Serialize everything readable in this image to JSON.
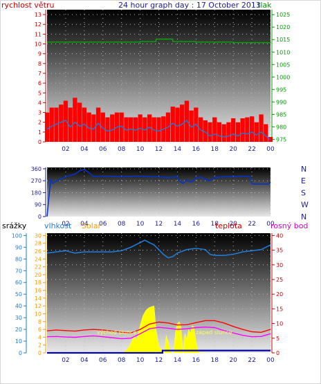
{
  "header": {
    "title": "24 hour graph day : 17 October 2013",
    "wind_label": "rychlost větru",
    "pressure_label": "tlak"
  },
  "colors": {
    "wind": "#ff0000",
    "pressure": "#00aa00",
    "direction": "#0033cc",
    "humidity": "#1e7bd6",
    "solar": "#ffff00",
    "temperature": "#ff0000",
    "dewpoint": "#ff00ff",
    "rain": "#0000aa"
  },
  "legend3": {
    "rain": "srážky",
    "humidity": "vlhkost",
    "solar": "Solar",
    "temperature": "teplota",
    "dewpoint": "rosný bod"
  },
  "annotations": {
    "sunrise": "východ slunce",
    "sunset": "západ slunce"
  },
  "chart_data": [
    {
      "type": "line",
      "name": "wind-pressure",
      "x_labels": [
        "02",
        "04",
        "06",
        "08",
        "10",
        "12",
        "14",
        "16",
        "18",
        "20",
        "22",
        "00"
      ],
      "x_range": [
        0,
        24
      ],
      "y_left": {
        "label": "rychlost větru",
        "ticks": [
          0,
          1,
          2,
          3,
          4,
          5,
          6,
          7,
          8,
          9,
          10,
          11,
          12,
          13
        ],
        "range": [
          0,
          13.5
        ]
      },
      "y_right": {
        "label": "tlak",
        "ticks": [
          975,
          980,
          985,
          990,
          995,
          1000,
          1005,
          1010,
          1015,
          1020,
          1025
        ],
        "range": [
          974,
          1027
        ]
      },
      "series": [
        {
          "name": "gust",
          "kind": "bars",
          "x": [
            0,
            0.5,
            1,
            1.5,
            2,
            2.5,
            3,
            3.5,
            4,
            4.5,
            5,
            5.5,
            6,
            6.5,
            7,
            7.5,
            8,
            8.5,
            9,
            9.5,
            10,
            10.5,
            11,
            11.5,
            12,
            12.5,
            13,
            13.5,
            14,
            14.5,
            15,
            15.5,
            16,
            16.5,
            17,
            17.5,
            18,
            18.5,
            19,
            19.5,
            20,
            20.5,
            21,
            21.5,
            22,
            22.5,
            23,
            23.5,
            24
          ],
          "y": [
            3,
            3.5,
            3.5,
            3.8,
            4.2,
            3.5,
            4.5,
            4,
            3.5,
            3,
            2.8,
            3.5,
            3,
            2.5,
            2.8,
            3,
            3,
            2.5,
            2.5,
            2.5,
            2.8,
            2.5,
            2.8,
            2.5,
            2.5,
            2.6,
            3,
            3.6,
            3.5,
            3.8,
            4.2,
            3.2,
            3.5,
            2.5,
            2.2,
            2,
            2.5,
            2,
            1.8,
            2,
            2.4,
            2,
            2.4,
            2.5,
            2.6,
            2,
            2.8,
            1.8,
            0.5
          ]
        },
        {
          "name": "wind",
          "kind": "line",
          "x": [
            0,
            0.5,
            1,
            1.5,
            2,
            2.5,
            3,
            3.5,
            4,
            4.5,
            5,
            5.5,
            6,
            6.5,
            7,
            7.5,
            8,
            8.5,
            9,
            9.5,
            10,
            10.5,
            11,
            11.5,
            12,
            12.5,
            13,
            13.5,
            14,
            14.5,
            15,
            15.5,
            16,
            16.5,
            17,
            17.5,
            18,
            18.5,
            19,
            19.5,
            20,
            20.5,
            21,
            21.5,
            22,
            22.5,
            23,
            23.5,
            24
          ],
          "y": [
            1.3,
            1.6,
            1.8,
            2,
            2.2,
            1.5,
            2,
            1.6,
            1.8,
            1.4,
            1.3,
            1.9,
            1.4,
            1.1,
            1.2,
            1.5,
            1.6,
            1.2,
            1.3,
            1.2,
            1.4,
            1.2,
            1.5,
            1.2,
            1.1,
            1.3,
            1.5,
            1.9,
            1.6,
            1.8,
            2.2,
            1.5,
            1.8,
            1.2,
            1,
            0.6,
            0.8,
            0.6,
            0.5,
            0.6,
            0.8,
            0.6,
            0.9,
            0.8,
            1,
            0.7,
            1,
            0.6,
            0.2
          ]
        },
        {
          "name": "pressure",
          "kind": "line",
          "x": [
            0,
            2,
            4,
            6,
            8,
            10,
            11.2,
            11.7,
            12,
            12.3,
            13,
            13.5,
            14,
            16,
            18,
            20,
            22,
            24
          ],
          "y": [
            1014,
            1014,
            1014,
            1014,
            1014,
            1014.2,
            1014.2,
            1015.2,
            1015.2,
            1015.2,
            1015.2,
            1014.2,
            1014.2,
            1014,
            1014,
            1013.8,
            1013.8,
            1013.6
          ]
        }
      ]
    },
    {
      "type": "line",
      "name": "wind-direction",
      "x_labels": [
        "02",
        "04",
        "06",
        "08",
        "10",
        "12",
        "14",
        "16",
        "18",
        "20",
        "22",
        "00"
      ],
      "x_range": [
        0,
        24
      ],
      "y_left": {
        "ticks": [
          0,
          90,
          180,
          270,
          360
        ],
        "range": [
          0,
          370
        ]
      },
      "y_right": {
        "ticks": [
          "N",
          "W",
          "S",
          "E",
          "N"
        ]
      },
      "series": [
        {
          "name": "direction",
          "x": [
            0,
            0.2,
            0.4,
            0.6,
            1,
            2,
            3,
            3.5,
            4,
            4.5,
            5,
            6,
            8,
            10,
            11,
            12,
            13,
            14,
            14.2,
            14.6,
            15,
            15.5,
            16,
            16.5,
            17,
            17.5,
            18,
            19,
            20,
            21,
            21.8,
            22,
            23,
            23.8,
            24
          ],
          "y": [
            0,
            150,
            280,
            250,
            270,
            300,
            320,
            345,
            355,
            330,
            300,
            305,
            300,
            305,
            300,
            300,
            295,
            300,
            270,
            250,
            275,
            260,
            290,
            300,
            280,
            270,
            295,
            300,
            300,
            305,
            300,
            245,
            245,
            245,
            260
          ]
        }
      ]
    },
    {
      "type": "area",
      "name": "humidity-solar-temperature",
      "x_labels": [
        "02",
        "04",
        "06",
        "08",
        "10",
        "12",
        "14",
        "16",
        "18",
        "20",
        "22",
        "00"
      ],
      "x_range": [
        0,
        24
      ],
      "y_left_rain": {
        "label": "srážky",
        "ticks": [
          0,
          10,
          20,
          30,
          40,
          50,
          60,
          70,
          80,
          90,
          100
        ],
        "range": [
          0,
          102
        ]
      },
      "y_left_humidity": {
        "label": "vlhkost",
        "ticks": [
          0,
          2,
          4,
          6,
          8,
          10,
          12,
          14,
          16,
          18,
          20,
          22,
          24,
          26,
          28,
          30
        ],
        "range": [
          0,
          30.6
        ]
      },
      "y_right": {
        "label": "teplota",
        "ticks": [
          0,
          5,
          10,
          15,
          20,
          25,
          30,
          35,
          40
        ],
        "range": [
          0,
          40.8
        ]
      },
      "series": [
        {
          "name": "humidity",
          "x": [
            0,
            1,
            2,
            3,
            4,
            5,
            6,
            7,
            8,
            9,
            10,
            10.5,
            11,
            11.5,
            12,
            12.5,
            13,
            13.5,
            14,
            15,
            16,
            17,
            17.5,
            18,
            19,
            20,
            21,
            22,
            23,
            24
          ],
          "y": [
            85,
            86,
            87,
            85,
            86,
            86,
            86,
            86,
            87,
            90,
            94,
            96,
            94,
            92,
            88,
            84,
            81,
            82,
            85,
            88,
            89,
            88,
            84,
            83,
            83,
            84,
            86,
            87,
            88,
            92
          ]
        },
        {
          "name": "solar",
          "x": [
            6.8,
            7,
            7.4,
            7.6,
            8,
            8.4,
            8.8,
            9,
            9.4,
            9.6,
            10,
            10.3,
            10.6,
            10.9,
            11.2,
            11.5,
            11.7,
            12,
            12.2,
            12.4,
            12.6,
            12.8,
            13,
            13.2,
            13.4,
            13.6,
            13.8,
            14,
            14.2,
            14.4,
            14.6,
            14.8,
            15,
            15.2,
            15.4,
            15.6,
            15.8,
            16,
            16.2,
            16.4,
            16.6,
            16.8,
            17
          ],
          "y": [
            0,
            0,
            0,
            0,
            0,
            0.5,
            1.5,
            2.5,
            4.5,
            3,
            7,
            9.5,
            10.8,
            11.5,
            11.8,
            12,
            6,
            2,
            1,
            0,
            0,
            4.5,
            3,
            1,
            0,
            0,
            5.5,
            7.5,
            8,
            6.5,
            0,
            5,
            3.5,
            6,
            5,
            7,
            6.5,
            3,
            0.5,
            0,
            0,
            0,
            0
          ]
        },
        {
          "name": "temperature",
          "x": [
            0,
            1,
            2,
            3,
            4,
            5,
            6,
            7,
            8,
            9,
            10,
            11,
            12,
            13,
            14,
            15,
            16,
            17,
            18,
            19,
            20,
            21,
            22,
            23,
            24
          ],
          "y": [
            7.5,
            7.8,
            7.6,
            7.4,
            7.8,
            8,
            7.8,
            7.4,
            7,
            6.8,
            8,
            9.8,
            10.5,
            10.2,
            9.5,
            9.6,
            10.3,
            11,
            11,
            10.2,
            9,
            8,
            7.2,
            7,
            8
          ]
        },
        {
          "name": "dewpoint",
          "x": [
            0,
            1,
            2,
            3,
            4,
            5,
            6,
            7,
            8,
            9,
            10,
            11,
            12,
            13,
            14,
            15,
            16,
            17,
            18,
            19,
            20,
            21,
            22,
            23,
            24
          ],
          "y": [
            5.5,
            5.6,
            5.4,
            5.3,
            5.6,
            5.8,
            5.5,
            5.2,
            4.8,
            5,
            6.5,
            8.2,
            8.7,
            8.4,
            8,
            8.2,
            8.6,
            8.8,
            8.6,
            7.6,
            6.8,
            6,
            5.5,
            5.6,
            6.5
          ]
        },
        {
          "name": "rain",
          "x": [
            0,
            0.8,
            12.2,
            12.4,
            18.6,
            24
          ],
          "y": [
            0,
            0,
            0,
            0.8,
            0.8,
            0.8
          ]
        }
      ]
    }
  ]
}
